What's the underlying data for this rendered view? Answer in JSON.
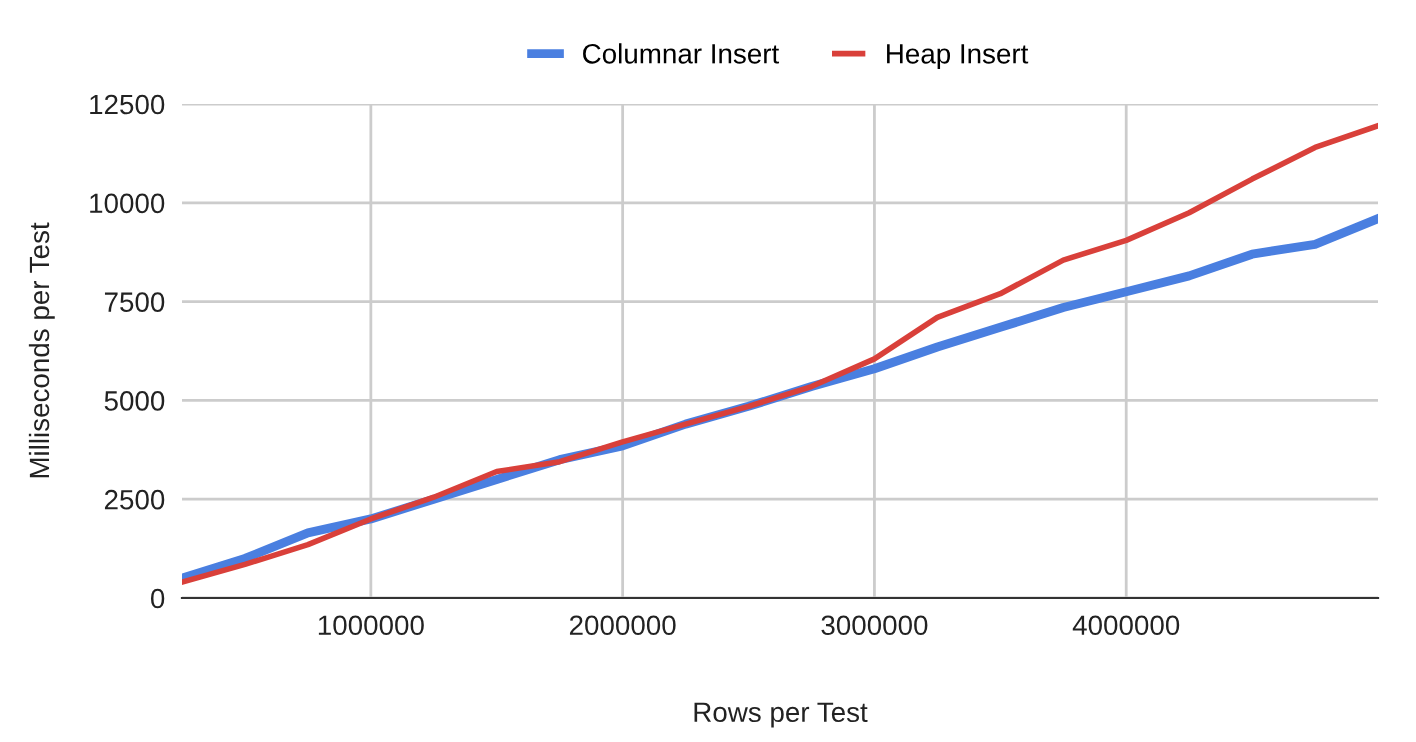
{
  "chart_data": {
    "type": "line",
    "xlabel": "Rows per Test",
    "ylabel": "Milliseconds per Test",
    "x": [
      250000,
      500000,
      750000,
      1000000,
      1250000,
      1500000,
      1750000,
      2000000,
      2250000,
      2500000,
      2750000,
      3000000,
      3250000,
      3500000,
      3750000,
      4000000,
      4250000,
      4500000,
      4750000,
      5000000
    ],
    "series": [
      {
        "name": "Columnar Insert",
        "color": "#4a7fe0",
        "values": [
          500,
          1000,
          1650,
          2000,
          2500,
          3000,
          3500,
          3850,
          4400,
          4850,
          5350,
          5800,
          6350,
          6850,
          7350,
          7750,
          8150,
          8700,
          8950,
          9600
        ]
      },
      {
        "name": "Heap Insert",
        "color": "#d9403a",
        "values": [
          400,
          850,
          1350,
          2000,
          2550,
          3200,
          3450,
          3950,
          4400,
          4850,
          5350,
          6050,
          7100,
          7700,
          8550,
          9050,
          9750,
          10600,
          11400,
          11950
        ]
      }
    ],
    "xlim": [
      250000,
      5000000
    ],
    "xticks": [
      1000000,
      2000000,
      3000000,
      4000000
    ],
    "ylim": [
      0,
      12500
    ],
    "yticks": [
      0,
      2500,
      5000,
      7500,
      10000,
      12500
    ],
    "grid": true,
    "legend": "top",
    "marker": "none",
    "line_style": "solid"
  }
}
